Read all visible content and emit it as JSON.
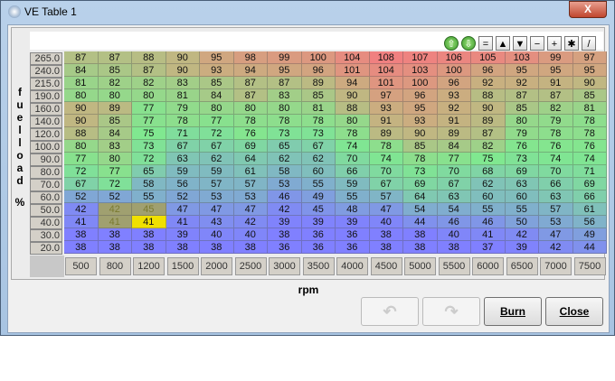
{
  "window": {
    "title": "VE Table 1",
    "close_glyph": "X"
  },
  "toolbar": {
    "buttons": [
      {
        "icon": "arrow-up-green-icon",
        "glyph": "⇧"
      },
      {
        "icon": "arrow-down-green-icon",
        "glyph": "⇩"
      },
      {
        "icon": "equals-icon",
        "glyph": "="
      },
      {
        "icon": "increase-triangle-icon",
        "glyph": "▲"
      },
      {
        "icon": "decrease-triangle-icon",
        "glyph": "▼"
      },
      {
        "icon": "minus-icon",
        "glyph": "−"
      },
      {
        "icon": "plus-icon",
        "glyph": "+"
      },
      {
        "icon": "multiply-icon",
        "glyph": "✱"
      },
      {
        "icon": "pen-icon",
        "glyph": "/"
      }
    ]
  },
  "y_axis_label": "fuel load %",
  "x_axis_label": "rpm",
  "table": {
    "rows": [
      "265.0",
      "240.0",
      "215.0",
      "190.0",
      "160.0",
      "140.0",
      "120.0",
      "100.0",
      "90.0",
      "80.0",
      "70.0",
      "60.0",
      "50.0",
      "40.0",
      "30.0",
      "20.0"
    ],
    "cols": [
      "500",
      "800",
      "1200",
      "1500",
      "2000",
      "2500",
      "3000",
      "3500",
      "4000",
      "4500",
      "5000",
      "5500",
      "6000",
      "6500",
      "7000",
      "7500"
    ],
    "values": [
      [
        87,
        87,
        88,
        90,
        95,
        98,
        99,
        100,
        104,
        108,
        107,
        106,
        105,
        103,
        99,
        97
      ],
      [
        84,
        85,
        87,
        90,
        93,
        94,
        95,
        96,
        101,
        104,
        103,
        100,
        96,
        95,
        95,
        95
      ],
      [
        81,
        82,
        82,
        83,
        85,
        87,
        87,
        89,
        94,
        101,
        100,
        96,
        92,
        92,
        91,
        90
      ],
      [
        80,
        80,
        80,
        81,
        84,
        87,
        83,
        85,
        90,
        97,
        96,
        93,
        88,
        87,
        87,
        85
      ],
      [
        90,
        89,
        77,
        79,
        80,
        80,
        80,
        81,
        88,
        93,
        95,
        92,
        90,
        85,
        82,
        81
      ],
      [
        90,
        85,
        77,
        78,
        77,
        78,
        78,
        78,
        80,
        91,
        93,
        91,
        89,
        80,
        79,
        78
      ],
      [
        88,
        84,
        75,
        71,
        72,
        76,
        73,
        73,
        78,
        89,
        90,
        89,
        87,
        79,
        78,
        78
      ],
      [
        80,
        83,
        73,
        67,
        67,
        69,
        65,
        67,
        74,
        78,
        85,
        84,
        82,
        76,
        76,
        76
      ],
      [
        77,
        80,
        72,
        63,
        62,
        64,
        62,
        62,
        70,
        74,
        78,
        77,
        75,
        73,
        74,
        74
      ],
      [
        72,
        77,
        65,
        59,
        59,
        61,
        58,
        60,
        66,
        70,
        73,
        70,
        68,
        69,
        70,
        71
      ],
      [
        67,
        72,
        58,
        56,
        57,
        57,
        53,
        55,
        59,
        67,
        69,
        67,
        62,
        63,
        66,
        69
      ],
      [
        52,
        52,
        55,
        52,
        53,
        53,
        46,
        49,
        55,
        57,
        64,
        63,
        60,
        60,
        63,
        66
      ],
      [
        42,
        42,
        45,
        47,
        47,
        47,
        42,
        45,
        48,
        47,
        54,
        54,
        55,
        55,
        57,
        61
      ],
      [
        41,
        41,
        41,
        41,
        43,
        42,
        39,
        39,
        39,
        40,
        44,
        46,
        46,
        50,
        53,
        56
      ],
      [
        38,
        38,
        38,
        39,
        40,
        40,
        38,
        36,
        36,
        38,
        38,
        40,
        41,
        42,
        47,
        49
      ],
      [
        38,
        38,
        38,
        38,
        38,
        38,
        36,
        36,
        36,
        38,
        38,
        38,
        37,
        39,
        42,
        44
      ]
    ],
    "selected_cells": [
      [
        12,
        1
      ],
      [
        12,
        2
      ],
      [
        13,
        1
      ]
    ],
    "active_cell": [
      13,
      2
    ],
    "colors": {
      "low": "#8080ff",
      "mid": "#80e890",
      "midhigh": "#c8b080",
      "high": "#f08080",
      "selected": "#a0a070",
      "active": "#f0e000"
    }
  },
  "buttons": {
    "undo_glyph": "↶",
    "redo_glyph": "↷",
    "burn": "Burn",
    "close": "Close"
  }
}
